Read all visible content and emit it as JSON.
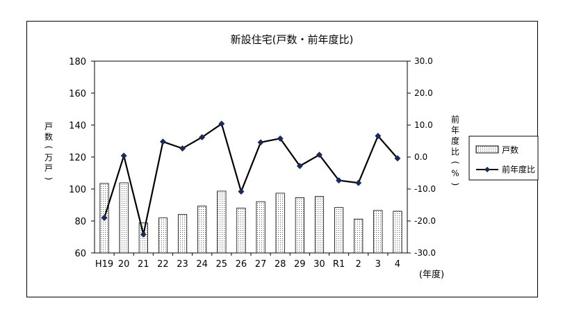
{
  "chart_data": {
    "type": "bar",
    "title": "新設住宅(戸数・前年度比)",
    "categories": [
      "H19",
      "20",
      "21",
      "22",
      "23",
      "24",
      "25",
      "26",
      "27",
      "28",
      "29",
      "30",
      "R1",
      "2",
      "3",
      "4"
    ],
    "series": [
      {
        "name": "戸数",
        "type": "bar",
        "axis": "left",
        "values": [
          103.5,
          103.9,
          78.8,
          81.9,
          84.1,
          89.3,
          98.7,
          88.1,
          92.1,
          97.4,
          94.6,
          95.3,
          88.4,
          81.2,
          86.6,
          86.1
        ]
      },
      {
        "name": "前年度比",
        "type": "line",
        "axis": "right",
        "values": [
          -19.0,
          0.4,
          -24.2,
          4.8,
          2.7,
          6.2,
          10.4,
          -10.8,
          4.6,
          5.8,
          -2.8,
          0.7,
          -7.3,
          -8.1,
          6.6,
          -0.4
        ]
      }
    ],
    "ylabel": "戸数(万戸)",
    "y2label": "前年度比(%)",
    "xlabel": "(年度)",
    "ylim": [
      60,
      180
    ],
    "y2lim": [
      -30,
      30
    ],
    "yticks": [
      "60",
      "80",
      "100",
      "120",
      "140",
      "160",
      "180"
    ],
    "y2ticks": [
      "-30.0",
      "-20.0",
      "-10.0",
      "0.0",
      "10.0",
      "20.0",
      "30.0"
    ],
    "legend_position": "right",
    "grid": false,
    "colors": {
      "bar_fill": "#ffffff",
      "bar_dots": "#555555",
      "line": "#000000",
      "marker": "#1a2a5a"
    }
  }
}
